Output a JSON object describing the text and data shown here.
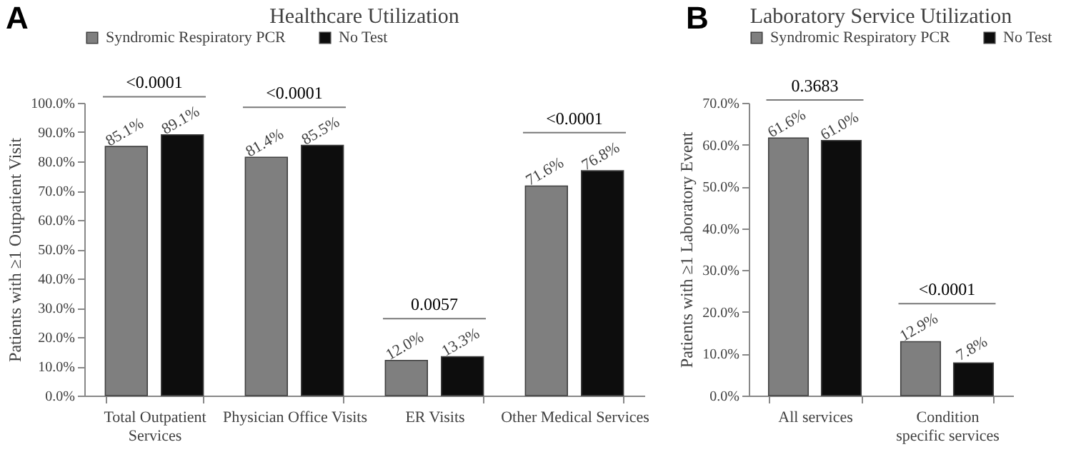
{
  "chart_data": [
    {
      "type": "bar",
      "title": "Healthcare Utilization",
      "ylabel": "Patients with ≥1 Outpatient Visit",
      "categories": [
        "Total Outpatient Services",
        "Physician Office Visits",
        "ER Visits",
        "Other Medical Services"
      ],
      "series": [
        {
          "name": "Syndromic Respiratory PCR",
          "color": "#7f7f7f",
          "values": [
            85.1,
            81.4,
            12.0,
            71.6
          ],
          "value_labels": [
            "85.1%",
            "81.4%",
            "12.0%",
            "71.6%"
          ]
        },
        {
          "name": "No Test",
          "color": "#0d0d0d",
          "values": [
            89.1,
            85.5,
            13.3,
            76.8
          ],
          "value_labels": [
            "89.1%",
            "85.5%",
            "13.3%",
            "76.8%"
          ]
        }
      ],
      "ylim": [
        0,
        100
      ],
      "yticks": [
        {
          "value": 0,
          "label": "0.0%"
        },
        {
          "value": 10,
          "label": "10.0%"
        },
        {
          "value": 20,
          "label": "20.0%"
        },
        {
          "value": 30,
          "label": "30.0%"
        },
        {
          "value": 40,
          "label": "40.0%"
        },
        {
          "value": 50,
          "label": "50.0%"
        },
        {
          "value": 60,
          "label": "60.0%"
        },
        {
          "value": 70,
          "label": "70.0%"
        },
        {
          "value": 80,
          "label": "80.0%"
        },
        {
          "value": 90,
          "label": "90.0%"
        },
        {
          "value": 100,
          "label": "100.0%"
        }
      ],
      "legend": "top",
      "annotations": [
        "A",
        "<0.0001",
        "<0.0001",
        "0.0057",
        "<0.0001"
      ]
    },
    {
      "type": "bar",
      "title": "Laboratory Service Utilization",
      "ylabel": "Patients with ≥1 Laboratory Event",
      "categories": [
        "All services",
        "Condition specific services"
      ],
      "series": [
        {
          "name": "Syndromic Respiratory PCR",
          "color": "#7f7f7f",
          "values": [
            61.6,
            12.9
          ],
          "value_labels": [
            "61.6%",
            "12.9%"
          ]
        },
        {
          "name": "No Test",
          "color": "#0d0d0d",
          "values": [
            61.0,
            7.8
          ],
          "value_labels": [
            "61.0%",
            "7.8%"
          ]
        }
      ],
      "ylim": [
        0,
        70
      ],
      "yticks": [
        {
          "value": 0,
          "label": "0.0%"
        },
        {
          "value": 10,
          "label": "10.0%"
        },
        {
          "value": 20,
          "label": "20.0%"
        },
        {
          "value": 30,
          "label": "30.0%"
        },
        {
          "value": 40,
          "label": "40.0%"
        },
        {
          "value": 50,
          "label": "50.0%"
        },
        {
          "value": 60,
          "label": "60.0%"
        },
        {
          "value": 70,
          "label": "70.0%"
        }
      ],
      "legend": "top",
      "annotations": [
        "B",
        "0.3683",
        "<0.0001"
      ]
    }
  ]
}
